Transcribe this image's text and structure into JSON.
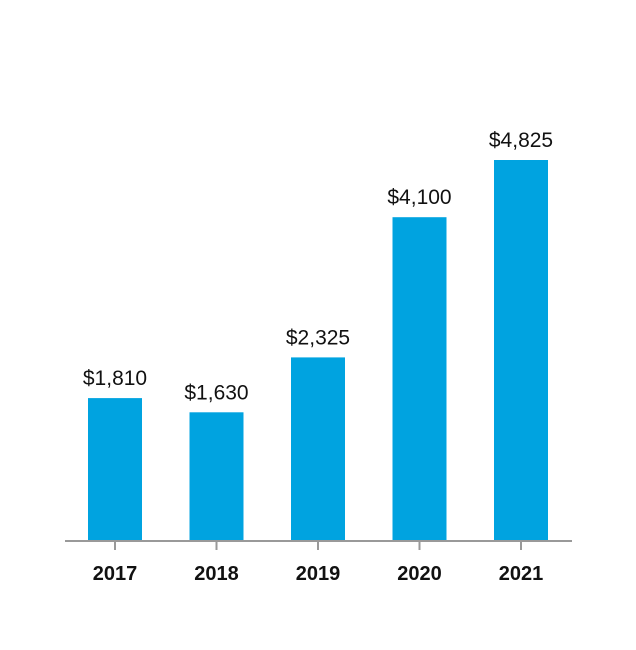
{
  "chart_data": {
    "type": "bar",
    "title": "",
    "xlabel": "",
    "ylabel": "",
    "categories": [
      "2017",
      "2018",
      "2019",
      "2020",
      "2021"
    ],
    "values": [
      1810,
      1630,
      2325,
      4100,
      4825
    ],
    "value_labels": [
      "$1,810",
      "$1,630",
      "$2,325",
      "$4,100",
      "$4,825"
    ],
    "ylim": [
      0,
      4825
    ],
    "grid": false,
    "legend": "none",
    "bar_color": "#00A3E0",
    "axis_color": "#999999"
  }
}
